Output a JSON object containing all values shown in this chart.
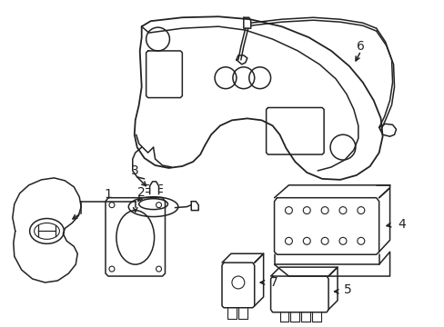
{
  "bg_color": "#ffffff",
  "line_color": "#222222",
  "line_width": 1.1,
  "figsize": [
    4.89,
    3.6
  ],
  "dpi": 100,
  "label_fontsize": 10
}
